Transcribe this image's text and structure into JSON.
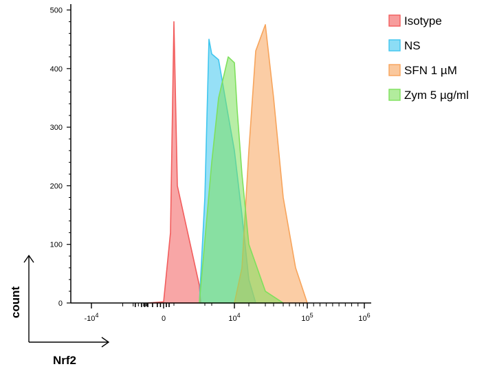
{
  "chart_data": {
    "type": "area",
    "title": "",
    "xlabel": "Nrf2",
    "ylabel": "count",
    "y_ticks": [
      0,
      100,
      200,
      300,
      400,
      500
    ],
    "ylim": [
      0,
      510
    ],
    "x_ticks": [
      {
        "base": "-10",
        "exp": "4"
      },
      {
        "base": "0",
        "exp": ""
      },
      {
        "base": "10",
        "exp": "4"
      },
      {
        "base": "10",
        "exp": "5"
      },
      {
        "base": "10",
        "exp": "6"
      }
    ],
    "legend_position": "right",
    "series": [
      {
        "name": "Isotype",
        "color": "#f25c5c",
        "x": [
          "-10^3",
          "0",
          "500",
          "1000",
          "1500",
          "2000",
          "2500"
        ],
        "values": [
          0,
          2,
          120,
          480,
          200,
          30,
          0
        ]
      },
      {
        "name": "NS",
        "color": "#3fc6ef",
        "x": [
          "2000",
          "3000",
          "4000",
          "5000",
          "6000",
          "8000",
          "10^4",
          "1.5×10^4",
          "2×10^4",
          "2.5×10^4"
        ],
        "values": [
          0,
          180,
          450,
          425,
          415,
          320,
          260,
          150,
          40,
          0
        ]
      },
      {
        "name": "SFN 1 µM",
        "color": "#f7a45b",
        "x": [
          "10^4",
          "1.5×10^4",
          "2×10^4",
          "2.5×10^4",
          "3×10^4",
          "4×10^4",
          "5×10^4",
          "7×10^4",
          "10^5"
        ],
        "values": [
          0,
          60,
          260,
          430,
          475,
          350,
          180,
          60,
          0
        ]
      },
      {
        "name": "Zym 5 µg/ml",
        "color": "#7ee05c",
        "x": [
          "2000",
          "5000",
          "6000",
          "8000",
          "10^4",
          "1.2×10^4",
          "1.5×10^4",
          "2×10^4",
          "3×10^4",
          "5×10^4"
        ],
        "values": [
          0,
          240,
          350,
          420,
          410,
          330,
          220,
          100,
          20,
          0
        ]
      }
    ]
  }
}
